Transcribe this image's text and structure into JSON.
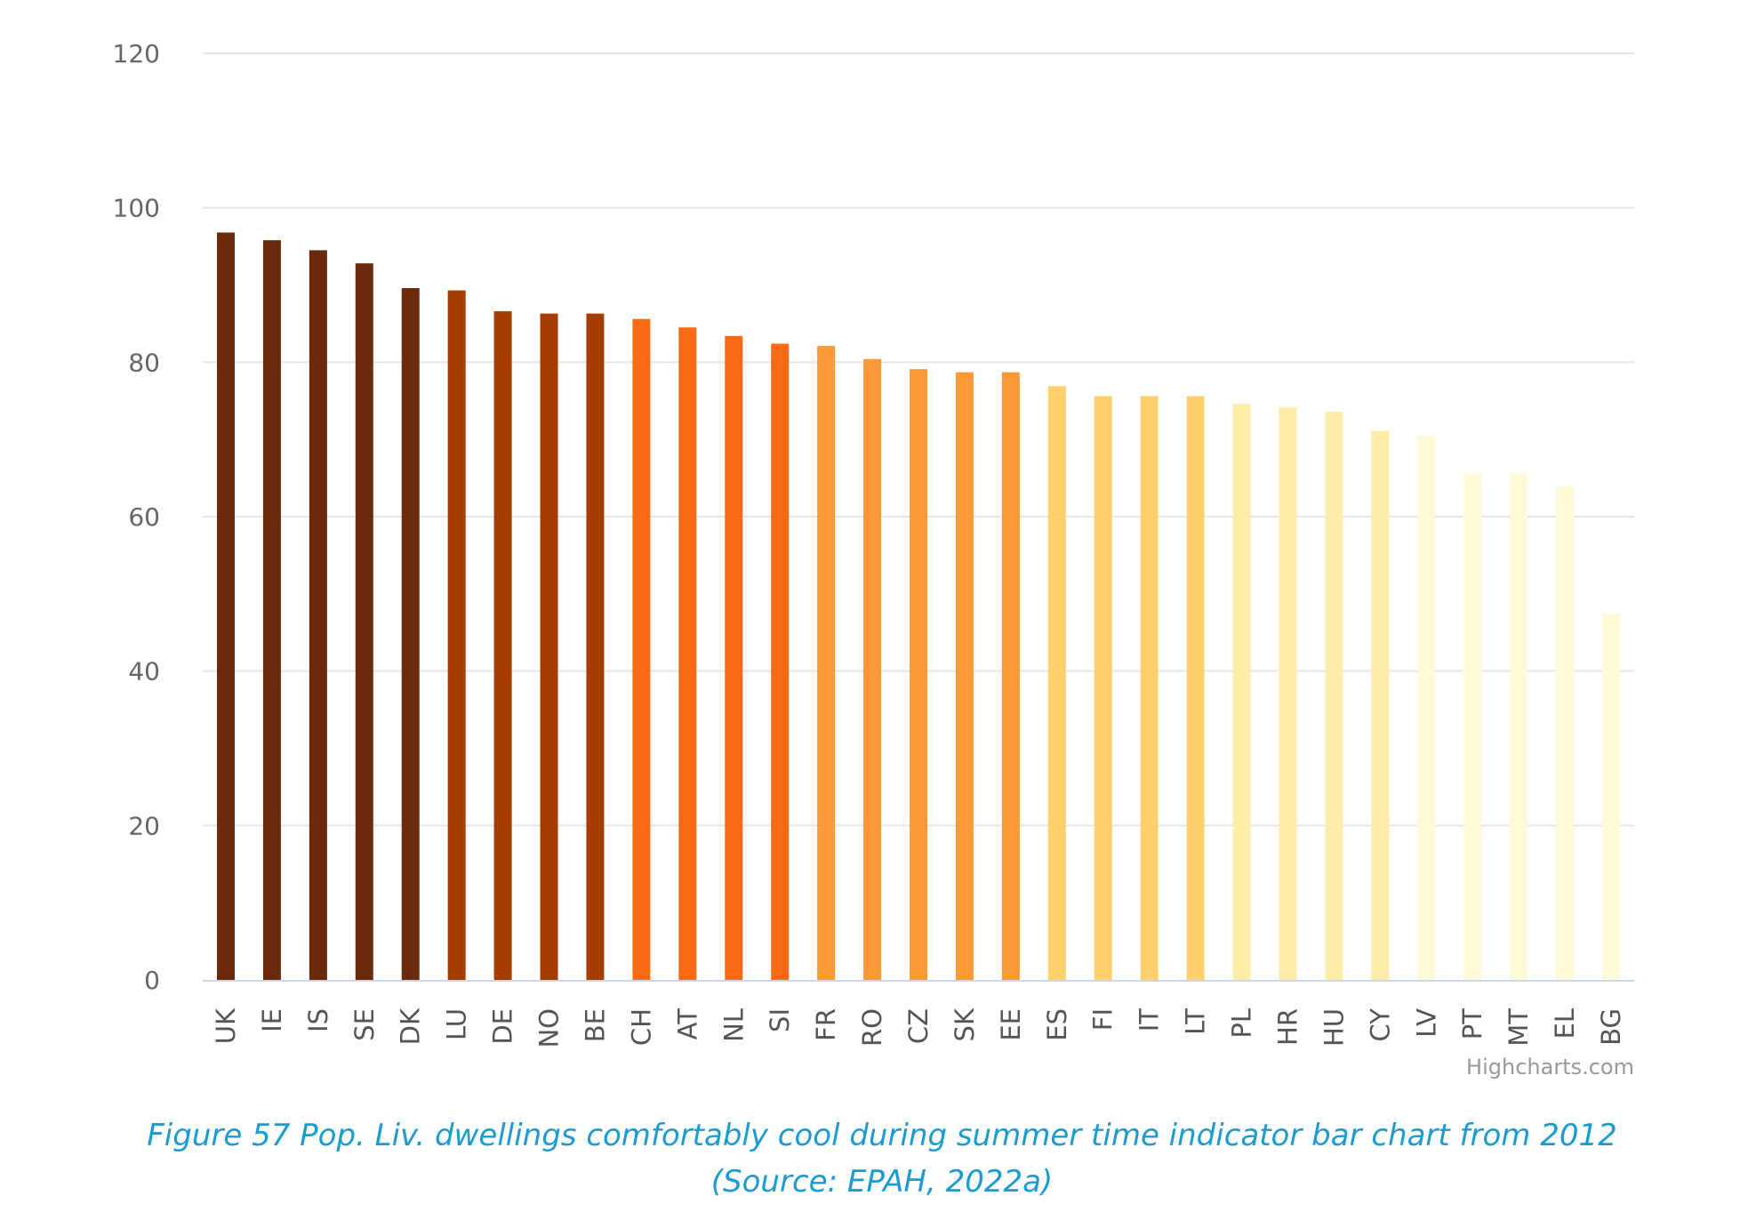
{
  "chart_data": {
    "type": "bar",
    "categories": [
      "UK",
      "IE",
      "IS",
      "SE",
      "DK",
      "LU",
      "DE",
      "NO",
      "BE",
      "CH",
      "AT",
      "NL",
      "SI",
      "FR",
      "RO",
      "CZ",
      "SK",
      "EE",
      "ES",
      "FI",
      "IT",
      "LT",
      "PL",
      "HR",
      "HU",
      "CY",
      "LV",
      "PT",
      "MT",
      "EL",
      "BG"
    ],
    "values": [
      96.8,
      95.8,
      94.5,
      92.8,
      89.6,
      89.3,
      86.6,
      86.3,
      86.3,
      85.6,
      84.5,
      83.4,
      82.4,
      82.1,
      80.4,
      79.1,
      78.7,
      78.7,
      76.9,
      75.6,
      75.6,
      75.6,
      74.6,
      74.2,
      73.6,
      71.1,
      70.5,
      65.6,
      65.6,
      63.9,
      47.4
    ],
    "colors": [
      "#6b2a0b",
      "#6b2a0b",
      "#6b2a0b",
      "#6b2a0b",
      "#6b2a0b",
      "#a63d03",
      "#a63d03",
      "#a63d03",
      "#a63d03",
      "#fa6a14",
      "#fa6a14",
      "#fa6a14",
      "#fa6a14",
      "#fb9a35",
      "#fb9a35",
      "#fb9a35",
      "#fb9a35",
      "#fb9a35",
      "#fecf6b",
      "#fecf6b",
      "#fecf6b",
      "#fecf6b",
      "#feeda9",
      "#feeda9",
      "#feeda9",
      "#feeda9",
      "#fffad8",
      "#fffad8",
      "#fffad8",
      "#fffad8",
      "#fffad8"
    ],
    "ylim": [
      0,
      120
    ],
    "yticks": [
      0,
      20,
      40,
      60,
      80,
      100,
      120
    ],
    "grid": true,
    "xlabel": "",
    "ylabel": ""
  },
  "credit": "Highcharts.com",
  "caption": {
    "line1": "Figure 57 Pop. Liv. dwellings comfortably cool during summer time indicator bar chart from 2012",
    "line2": "(Source: EPAH, 2022a)"
  }
}
